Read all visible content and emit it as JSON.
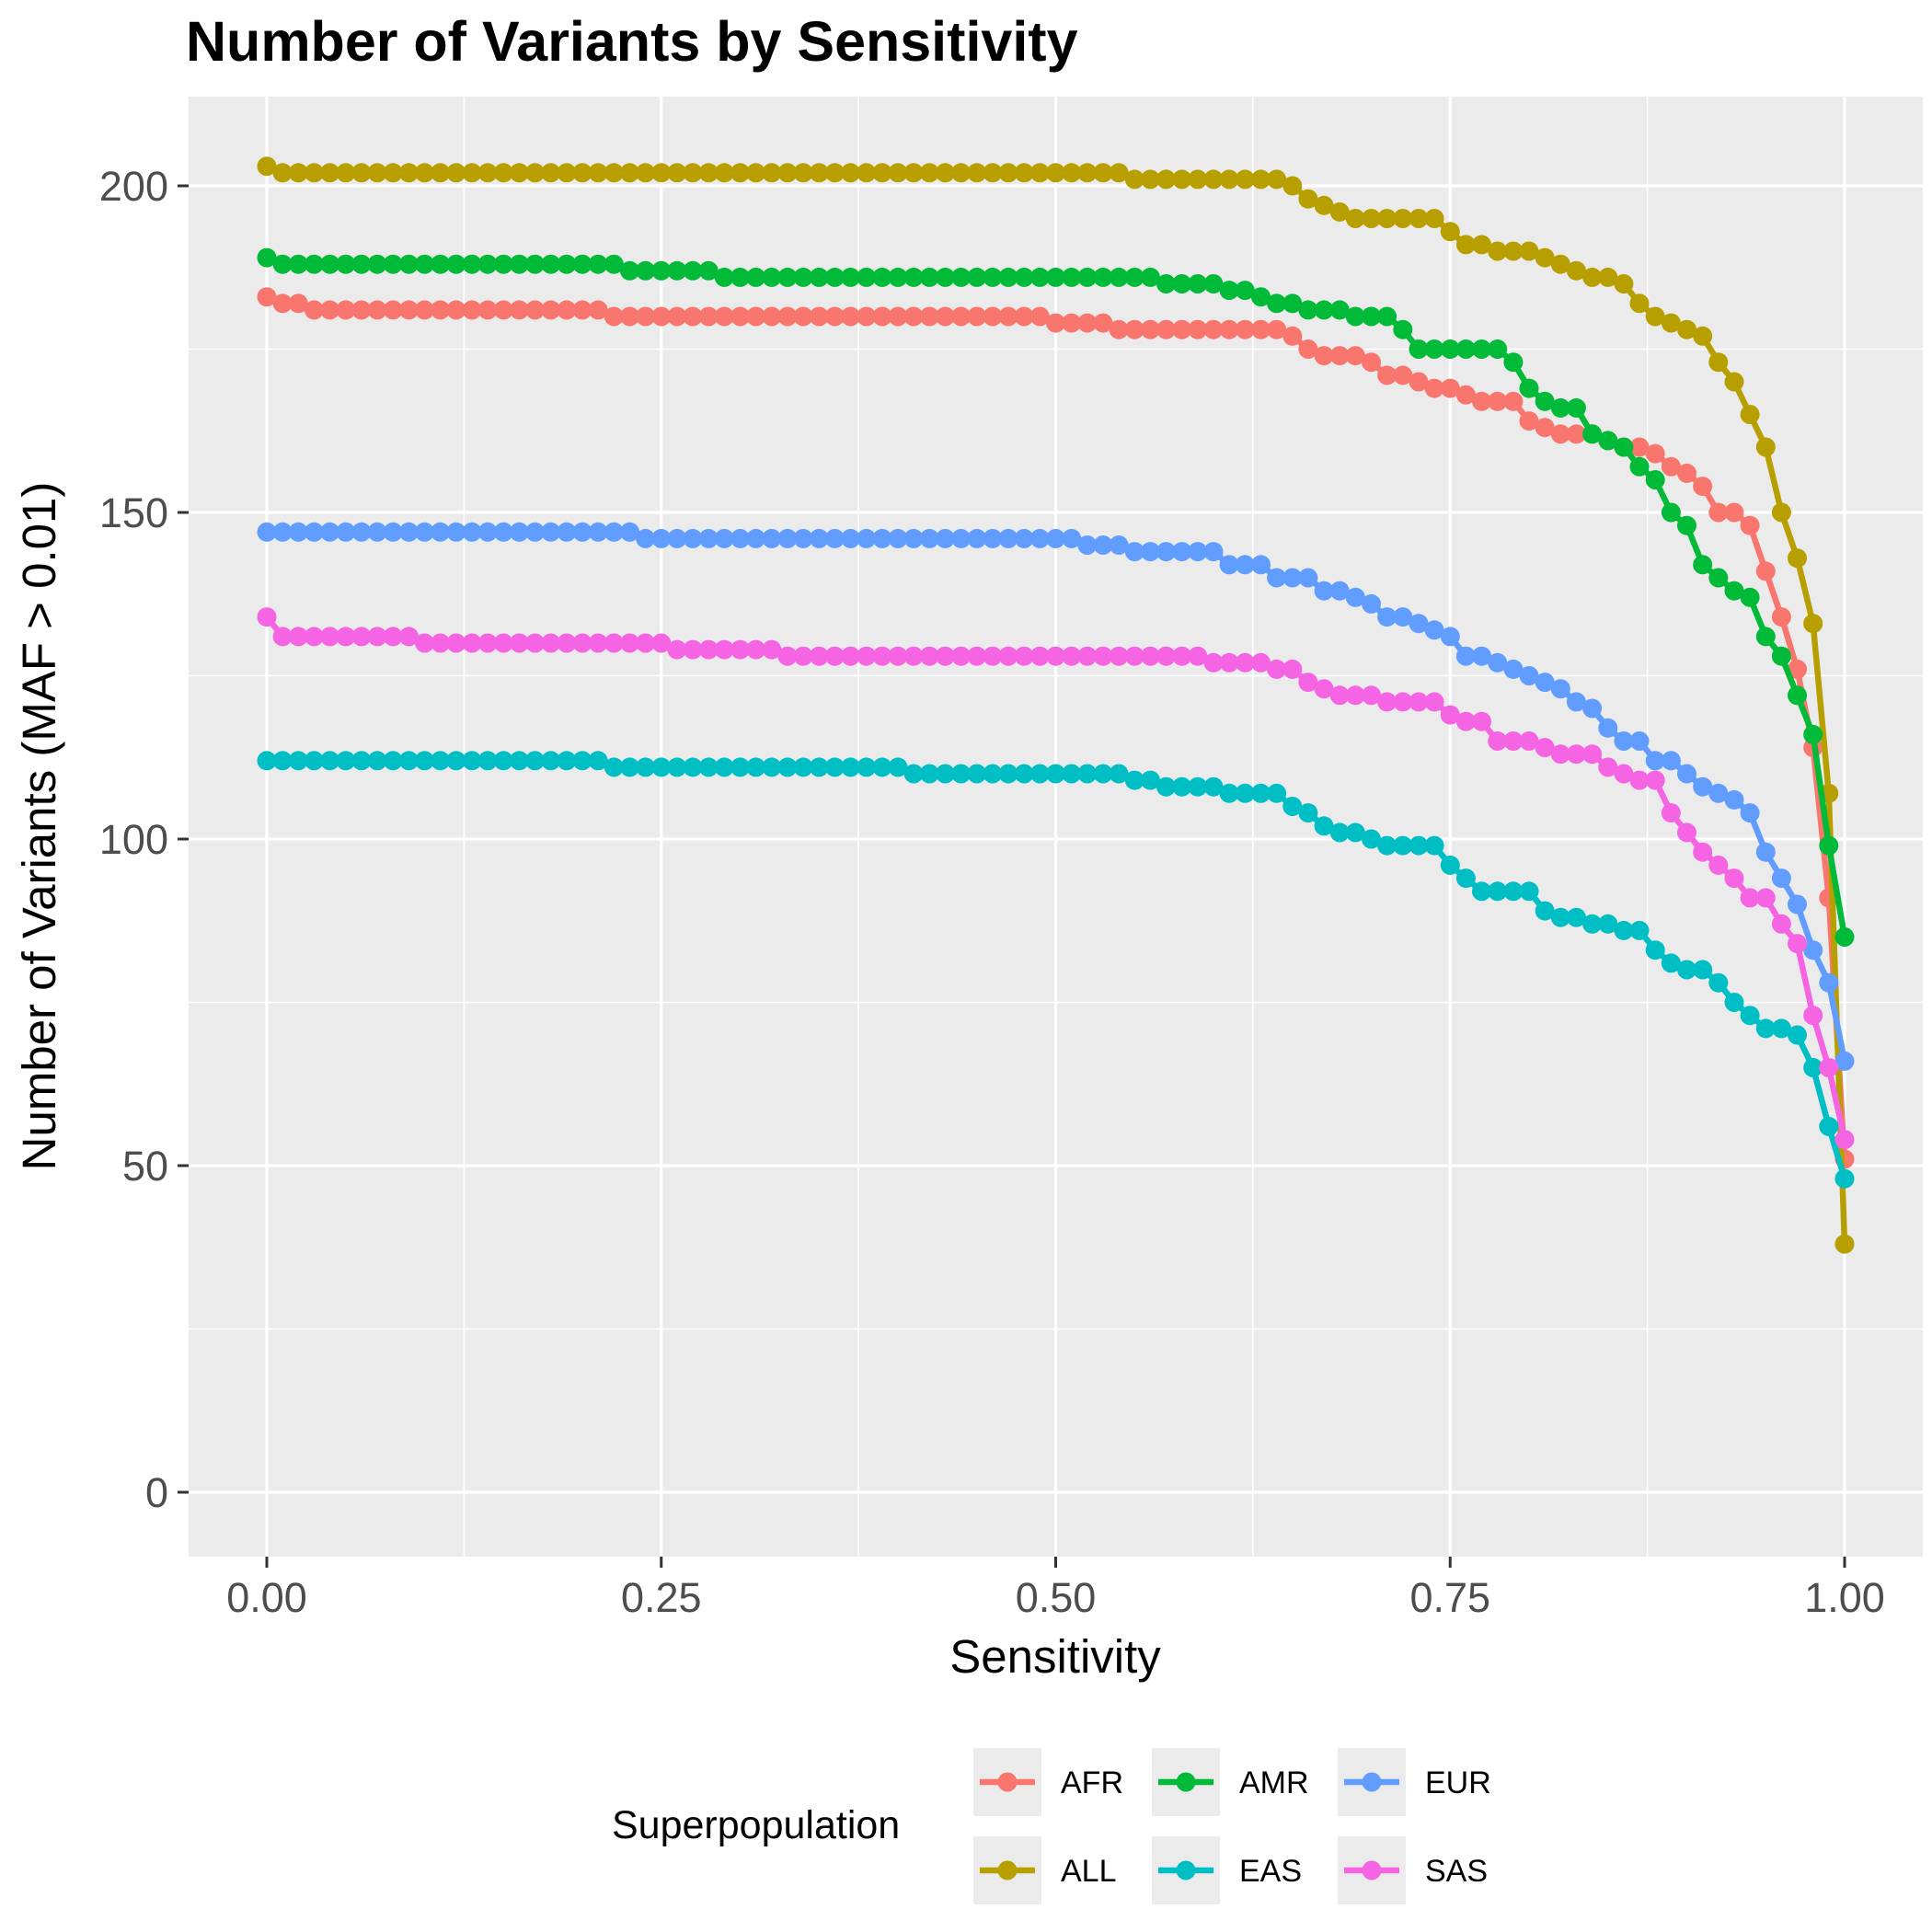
{
  "chart_data": {
    "type": "line",
    "title": "Number of Variants by Sensitivity",
    "xlabel": "Sensitivity",
    "ylabel": "Number of Variants (MAF > 0.01)",
    "xlim": [
      0,
      1
    ],
    "ylim": [
      0,
      205
    ],
    "x_ticks": [
      "0.00",
      "0.25",
      "0.50",
      "0.75",
      "1.00"
    ],
    "y_ticks": [
      "0",
      "50",
      "100",
      "150",
      "200"
    ],
    "grid": true,
    "legend": {
      "title": "Superpopulation",
      "placement": "bottom"
    },
    "x": [
      0,
      0.01,
      0.02,
      0.03,
      0.04,
      0.05,
      0.06,
      0.07,
      0.08,
      0.09,
      0.1,
      0.11,
      0.12,
      0.13,
      0.14,
      0.15,
      0.16,
      0.17,
      0.18,
      0.19,
      0.2,
      0.21,
      0.22,
      0.23,
      0.24,
      0.25,
      0.26,
      0.27,
      0.28,
      0.29,
      0.3,
      0.31,
      0.32,
      0.33,
      0.34,
      0.35,
      0.36,
      0.37,
      0.38,
      0.39,
      0.4,
      0.41,
      0.42,
      0.43,
      0.44,
      0.45,
      0.46,
      0.47,
      0.48,
      0.49,
      0.5,
      0.51,
      0.52,
      0.53,
      0.54,
      0.55,
      0.56,
      0.57,
      0.58,
      0.59,
      0.6,
      0.61,
      0.62,
      0.63,
      0.64,
      0.65,
      0.66,
      0.67,
      0.68,
      0.69,
      0.7,
      0.71,
      0.72,
      0.73,
      0.74,
      0.75,
      0.76,
      0.77,
      0.78,
      0.79,
      0.8,
      0.81,
      0.82,
      0.83,
      0.84,
      0.85,
      0.86,
      0.87,
      0.88,
      0.89,
      0.9,
      0.91,
      0.92,
      0.93,
      0.94,
      0.95,
      0.96,
      0.97,
      0.98,
      0.99,
      1.0
    ],
    "series": [
      {
        "name": "AFR",
        "color": "#F8766D",
        "values": [
          183,
          182,
          182,
          181,
          181,
          181,
          181,
          181,
          181,
          181,
          181,
          181,
          181,
          181,
          181,
          181,
          181,
          181,
          181,
          181,
          181,
          181,
          180,
          180,
          180,
          180,
          180,
          180,
          180,
          180,
          180,
          180,
          180,
          180,
          180,
          180,
          180,
          180,
          180,
          180,
          180,
          180,
          180,
          180,
          180,
          180,
          180,
          180,
          180,
          180,
          179,
          179,
          179,
          179,
          178,
          178,
          178,
          178,
          178,
          178,
          178,
          178,
          178,
          178,
          178,
          177,
          175,
          174,
          174,
          174,
          173,
          171,
          171,
          170,
          169,
          169,
          168,
          167,
          167,
          167,
          164,
          163,
          162,
          162,
          162,
          161,
          160,
          160,
          159,
          157,
          156,
          154,
          150,
          150,
          148,
          141,
          134,
          126,
          114,
          91,
          51
        ]
      },
      {
        "name": "ALL",
        "color": "#B79F00",
        "values": [
          203,
          202,
          202,
          202,
          202,
          202,
          202,
          202,
          202,
          202,
          202,
          202,
          202,
          202,
          202,
          202,
          202,
          202,
          202,
          202,
          202,
          202,
          202,
          202,
          202,
          202,
          202,
          202,
          202,
          202,
          202,
          202,
          202,
          202,
          202,
          202,
          202,
          202,
          202,
          202,
          202,
          202,
          202,
          202,
          202,
          202,
          202,
          202,
          202,
          202,
          202,
          202,
          202,
          202,
          202,
          201,
          201,
          201,
          201,
          201,
          201,
          201,
          201,
          201,
          201,
          200,
          198,
          197,
          196,
          195,
          195,
          195,
          195,
          195,
          195,
          193,
          191,
          191,
          190,
          190,
          190,
          189,
          188,
          187,
          186,
          186,
          185,
          182,
          180,
          179,
          178,
          177,
          173,
          170,
          165,
          160,
          150,
          143,
          133,
          107,
          38
        ]
      },
      {
        "name": "AMR",
        "color": "#00BA38",
        "values": [
          189,
          188,
          188,
          188,
          188,
          188,
          188,
          188,
          188,
          188,
          188,
          188,
          188,
          188,
          188,
          188,
          188,
          188,
          188,
          188,
          188,
          188,
          188,
          187,
          187,
          187,
          187,
          187,
          187,
          186,
          186,
          186,
          186,
          186,
          186,
          186,
          186,
          186,
          186,
          186,
          186,
          186,
          186,
          186,
          186,
          186,
          186,
          186,
          186,
          186,
          186,
          186,
          186,
          186,
          186,
          186,
          186,
          185,
          185,
          185,
          185,
          184,
          184,
          183,
          182,
          182,
          181,
          181,
          181,
          180,
          180,
          180,
          178,
          175,
          175,
          175,
          175,
          175,
          175,
          173,
          169,
          167,
          166,
          166,
          162,
          161,
          160,
          157,
          155,
          150,
          148,
          142,
          140,
          138,
          137,
          131,
          128,
          122,
          116,
          99,
          85
        ]
      },
      {
        "name": "EAS",
        "color": "#00BFC4",
        "values": [
          112,
          112,
          112,
          112,
          112,
          112,
          112,
          112,
          112,
          112,
          112,
          112,
          112,
          112,
          112,
          112,
          112,
          112,
          112,
          112,
          112,
          112,
          111,
          111,
          111,
          111,
          111,
          111,
          111,
          111,
          111,
          111,
          111,
          111,
          111,
          111,
          111,
          111,
          111,
          111,
          111,
          110,
          110,
          110,
          110,
          110,
          110,
          110,
          110,
          110,
          110,
          110,
          110,
          110,
          110,
          109,
          109,
          108,
          108,
          108,
          108,
          107,
          107,
          107,
          107,
          105,
          104,
          102,
          101,
          101,
          100,
          99,
          99,
          99,
          99,
          96,
          94,
          92,
          92,
          92,
          92,
          89,
          88,
          88,
          87,
          87,
          86,
          86,
          83,
          81,
          80,
          80,
          78,
          75,
          73,
          71,
          71,
          70,
          65,
          56,
          48
        ]
      },
      {
        "name": "EUR",
        "color": "#619CFF",
        "values": [
          147,
          147,
          147,
          147,
          147,
          147,
          147,
          147,
          147,
          147,
          147,
          147,
          147,
          147,
          147,
          147,
          147,
          147,
          147,
          147,
          147,
          147,
          147,
          147,
          146,
          146,
          146,
          146,
          146,
          146,
          146,
          146,
          146,
          146,
          146,
          146,
          146,
          146,
          146,
          146,
          146,
          146,
          146,
          146,
          146,
          146,
          146,
          146,
          146,
          146,
          146,
          146,
          145,
          145,
          145,
          144,
          144,
          144,
          144,
          144,
          144,
          142,
          142,
          142,
          140,
          140,
          140,
          138,
          138,
          137,
          136,
          134,
          134,
          133,
          132,
          131,
          128,
          128,
          127,
          126,
          125,
          124,
          123,
          121,
          120,
          117,
          115,
          115,
          112,
          112,
          110,
          108,
          107,
          106,
          104,
          98,
          94,
          90,
          83,
          78,
          66
        ]
      },
      {
        "name": "SAS",
        "color": "#F564E3",
        "values": [
          134,
          131,
          131,
          131,
          131,
          131,
          131,
          131,
          131,
          131,
          130,
          130,
          130,
          130,
          130,
          130,
          130,
          130,
          130,
          130,
          130,
          130,
          130,
          130,
          130,
          130,
          129,
          129,
          129,
          129,
          129,
          129,
          129,
          128,
          128,
          128,
          128,
          128,
          128,
          128,
          128,
          128,
          128,
          128,
          128,
          128,
          128,
          128,
          128,
          128,
          128,
          128,
          128,
          128,
          128,
          128,
          128,
          128,
          128,
          128,
          127,
          127,
          127,
          127,
          126,
          126,
          124,
          123,
          122,
          122,
          122,
          121,
          121,
          121,
          121,
          119,
          118,
          118,
          115,
          115,
          115,
          114,
          113,
          113,
          113,
          111,
          110,
          109,
          109,
          104,
          101,
          98,
          96,
          94,
          91,
          91,
          87,
          84,
          73,
          65,
          54
        ]
      }
    ]
  }
}
